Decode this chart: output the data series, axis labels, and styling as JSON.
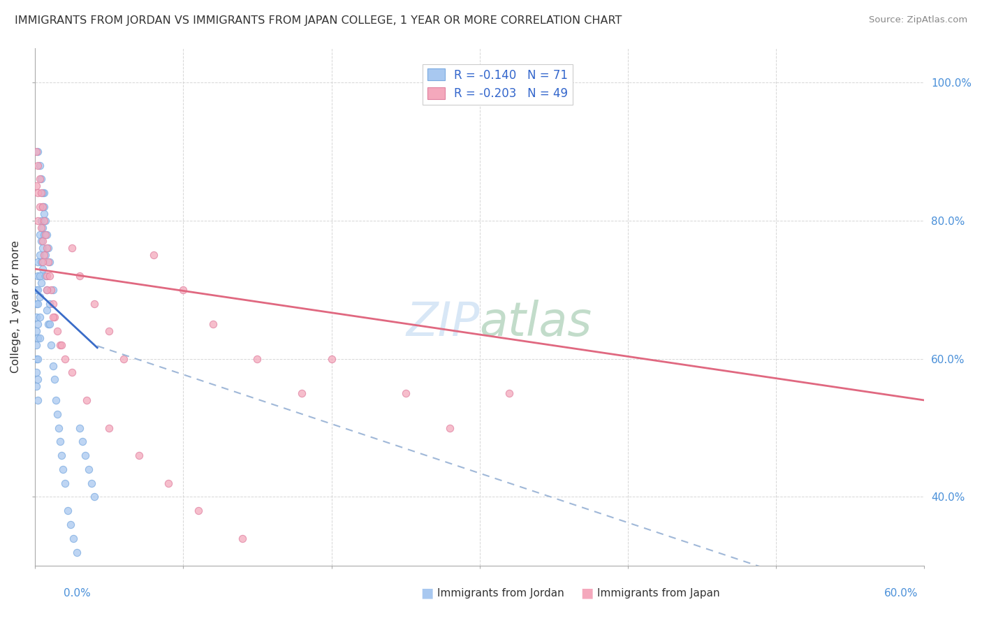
{
  "title": "IMMIGRANTS FROM JORDAN VS IMMIGRANTS FROM JAPAN COLLEGE, 1 YEAR OR MORE CORRELATION CHART",
  "source": "Source: ZipAtlas.com",
  "ylabel": "College, 1 year or more",
  "color_jordan": "#A8C8F0",
  "color_japan": "#F4A8BC",
  "color_jordan_line": "#3A6CC8",
  "color_japan_line": "#E06880",
  "color_jordan_dashed": "#A0B8D8",
  "watermark": "ZIPatlas",
  "xlim": [
    0.0,
    0.6
  ],
  "ylim": [
    0.3,
    1.05
  ],
  "yticks": [
    0.4,
    0.6,
    0.8,
    1.0
  ],
  "ytick_labels": [
    "40.0%",
    "60.0%",
    "80.0%",
    "100.0%"
  ],
  "jordan_x": [
    0.001,
    0.001,
    0.001,
    0.001,
    0.001,
    0.001,
    0.001,
    0.001,
    0.002,
    0.002,
    0.002,
    0.002,
    0.002,
    0.002,
    0.002,
    0.002,
    0.002,
    0.003,
    0.003,
    0.003,
    0.003,
    0.003,
    0.003,
    0.004,
    0.004,
    0.004,
    0.004,
    0.005,
    0.005,
    0.005,
    0.005,
    0.006,
    0.006,
    0.006,
    0.007,
    0.007,
    0.008,
    0.008,
    0.009,
    0.01,
    0.01,
    0.011,
    0.012,
    0.013,
    0.014,
    0.015,
    0.016,
    0.017,
    0.018,
    0.019,
    0.02,
    0.022,
    0.024,
    0.026,
    0.028,
    0.03,
    0.032,
    0.034,
    0.036,
    0.038,
    0.04,
    0.002,
    0.003,
    0.004,
    0.005,
    0.006,
    0.007,
    0.008,
    0.009,
    0.01,
    0.012
  ],
  "jordan_y": [
    0.7,
    0.68,
    0.66,
    0.64,
    0.62,
    0.6,
    0.58,
    0.56,
    0.74,
    0.72,
    0.7,
    0.68,
    0.65,
    0.63,
    0.6,
    0.57,
    0.54,
    0.78,
    0.75,
    0.72,
    0.69,
    0.66,
    0.63,
    0.8,
    0.77,
    0.74,
    0.71,
    0.82,
    0.79,
    0.76,
    0.73,
    0.84,
    0.81,
    0.78,
    0.75,
    0.72,
    0.7,
    0.67,
    0.65,
    0.68,
    0.65,
    0.62,
    0.59,
    0.57,
    0.54,
    0.52,
    0.5,
    0.48,
    0.46,
    0.44,
    0.42,
    0.38,
    0.36,
    0.34,
    0.32,
    0.5,
    0.48,
    0.46,
    0.44,
    0.42,
    0.4,
    0.9,
    0.88,
    0.86,
    0.84,
    0.82,
    0.8,
    0.78,
    0.76,
    0.74,
    0.7
  ],
  "japan_x": [
    0.001,
    0.001,
    0.002,
    0.002,
    0.002,
    0.003,
    0.003,
    0.004,
    0.004,
    0.005,
    0.005,
    0.006,
    0.006,
    0.007,
    0.008,
    0.008,
    0.009,
    0.01,
    0.011,
    0.012,
    0.013,
    0.015,
    0.017,
    0.02,
    0.025,
    0.03,
    0.04,
    0.05,
    0.06,
    0.08,
    0.1,
    0.12,
    0.15,
    0.18,
    0.2,
    0.25,
    0.28,
    0.32,
    0.005,
    0.008,
    0.012,
    0.018,
    0.025,
    0.035,
    0.05,
    0.07,
    0.09,
    0.11,
    0.14
  ],
  "japan_y": [
    0.9,
    0.85,
    0.88,
    0.84,
    0.8,
    0.86,
    0.82,
    0.84,
    0.79,
    0.82,
    0.77,
    0.8,
    0.75,
    0.78,
    0.76,
    0.72,
    0.74,
    0.72,
    0.7,
    0.68,
    0.66,
    0.64,
    0.62,
    0.6,
    0.76,
    0.72,
    0.68,
    0.64,
    0.6,
    0.75,
    0.7,
    0.65,
    0.6,
    0.55,
    0.6,
    0.55,
    0.5,
    0.55,
    0.74,
    0.7,
    0.66,
    0.62,
    0.58,
    0.54,
    0.5,
    0.46,
    0.42,
    0.38,
    0.34
  ]
}
